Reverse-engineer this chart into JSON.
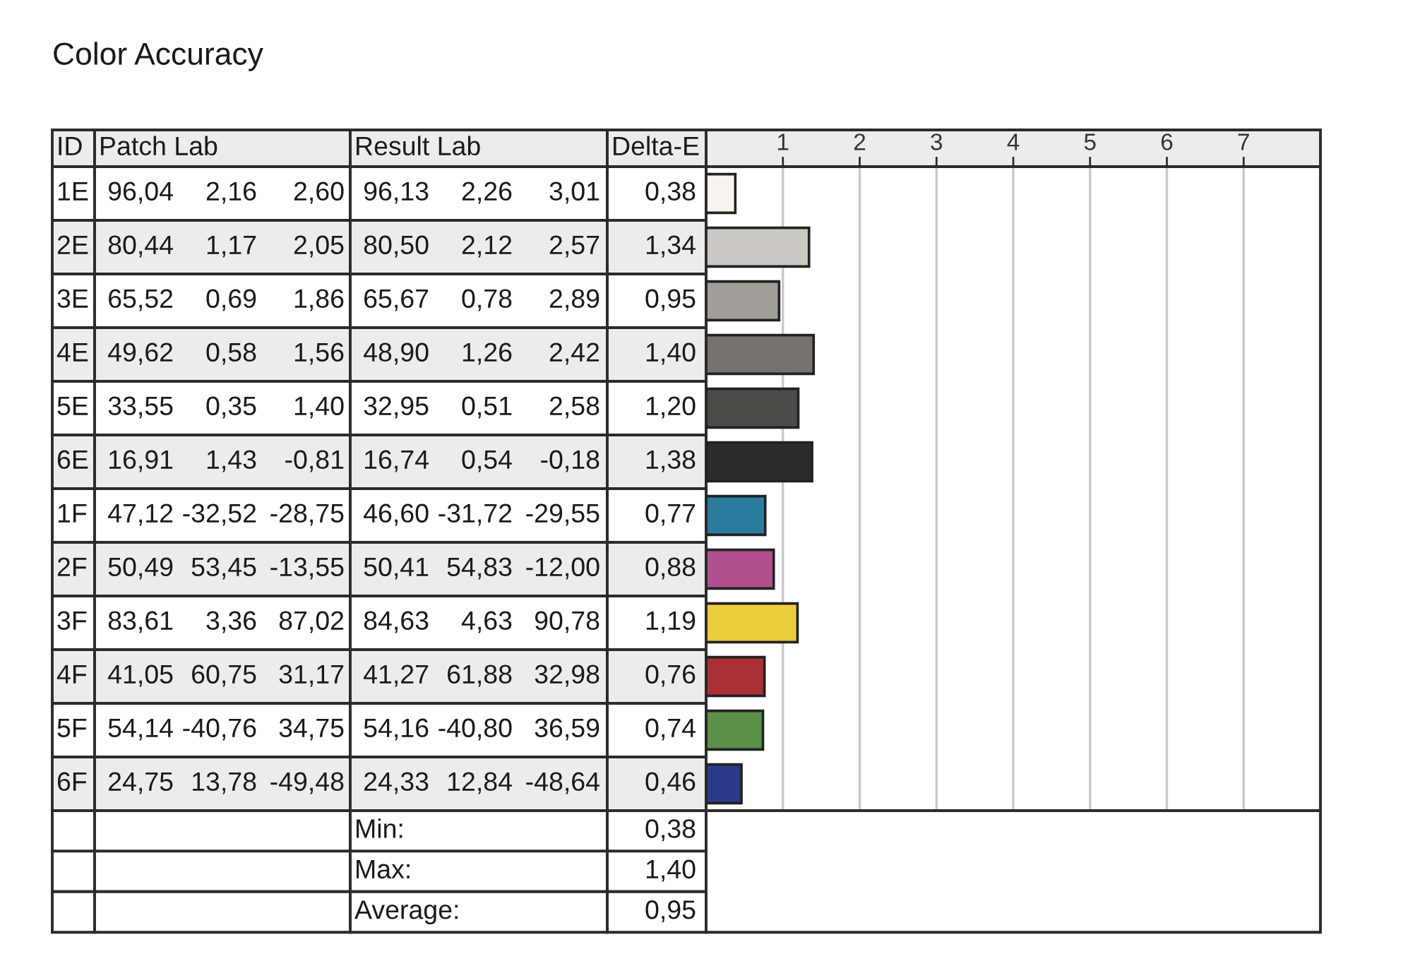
{
  "chart_data": {
    "type": "bar",
    "orientation": "horizontal",
    "title": "Color Accuracy",
    "categories": [
      "1E",
      "2E",
      "3E",
      "4E",
      "5E",
      "6E",
      "1F",
      "2F",
      "3F",
      "4F",
      "5F",
      "6F"
    ],
    "values": [
      0.38,
      1.34,
      0.95,
      1.4,
      1.2,
      1.38,
      0.77,
      0.88,
      1.19,
      0.76,
      0.74,
      0.46
    ],
    "colors": [
      "#f7f3ef",
      "#cbc7c3",
      "#a19e9a",
      "#75726f",
      "#4d4b48",
      "#2b2b2b",
      "#2a7b9d",
      "#b0518d",
      "#ecce3c",
      "#ab3036",
      "#5a9047",
      "#2b3a8a"
    ],
    "value_labels": [
      "0,38",
      "1,34",
      "0,95",
      "1,40",
      "1,20",
      "1,38",
      "0,77",
      "0,88",
      "1,19",
      "0,76",
      "0,74",
      "0,46"
    ],
    "x2lim": [
      0,
      8
    ],
    "x2ticks": [
      1,
      2,
      3,
      4,
      5,
      6,
      7
    ],
    "grid": "x",
    "annotations": [
      "ID",
      "Patch Lab",
      "Result Lab",
      "Delta-E",
      "96,04",
      "2,16",
      "2,60",
      "96,13",
      "2,26",
      "3,01",
      "80,44",
      "1,17",
      "2,05",
      "80,50",
      "2,12",
      "2,57",
      "65,52",
      "0,69",
      "1,86",
      "65,67",
      "0,78",
      "2,89",
      "49,62",
      "0,58",
      "1,56",
      "48,90",
      "1,26",
      "2,42",
      "33,55",
      "0,35",
      "1,40",
      "32,95",
      "0,51",
      "2,58",
      "16,91",
      "1,43",
      "-0,81",
      "16,74",
      "0,54",
      "-0,18",
      "47,12",
      "-32,52",
      "-28,75",
      "46,60",
      "-31,72",
      "-29,55",
      "50,49",
      "53,45",
      "-13,55",
      "50,41",
      "54,83",
      "-12,00",
      "83,61",
      "3,36",
      "87,02",
      "84,63",
      "4,63",
      "90,78",
      "41,05",
      "60,75",
      "31,17",
      "41,27",
      "61,88",
      "32,98",
      "54,14",
      "-40,76",
      "34,75",
      "54,16",
      "-40,80",
      "36,59",
      "24,75",
      "13,78",
      "-49,48",
      "24,33",
      "12,84",
      "-48,64",
      "Min:",
      "0,38",
      "Max:",
      "1,40",
      "Average:",
      "0,95"
    ]
  }
}
